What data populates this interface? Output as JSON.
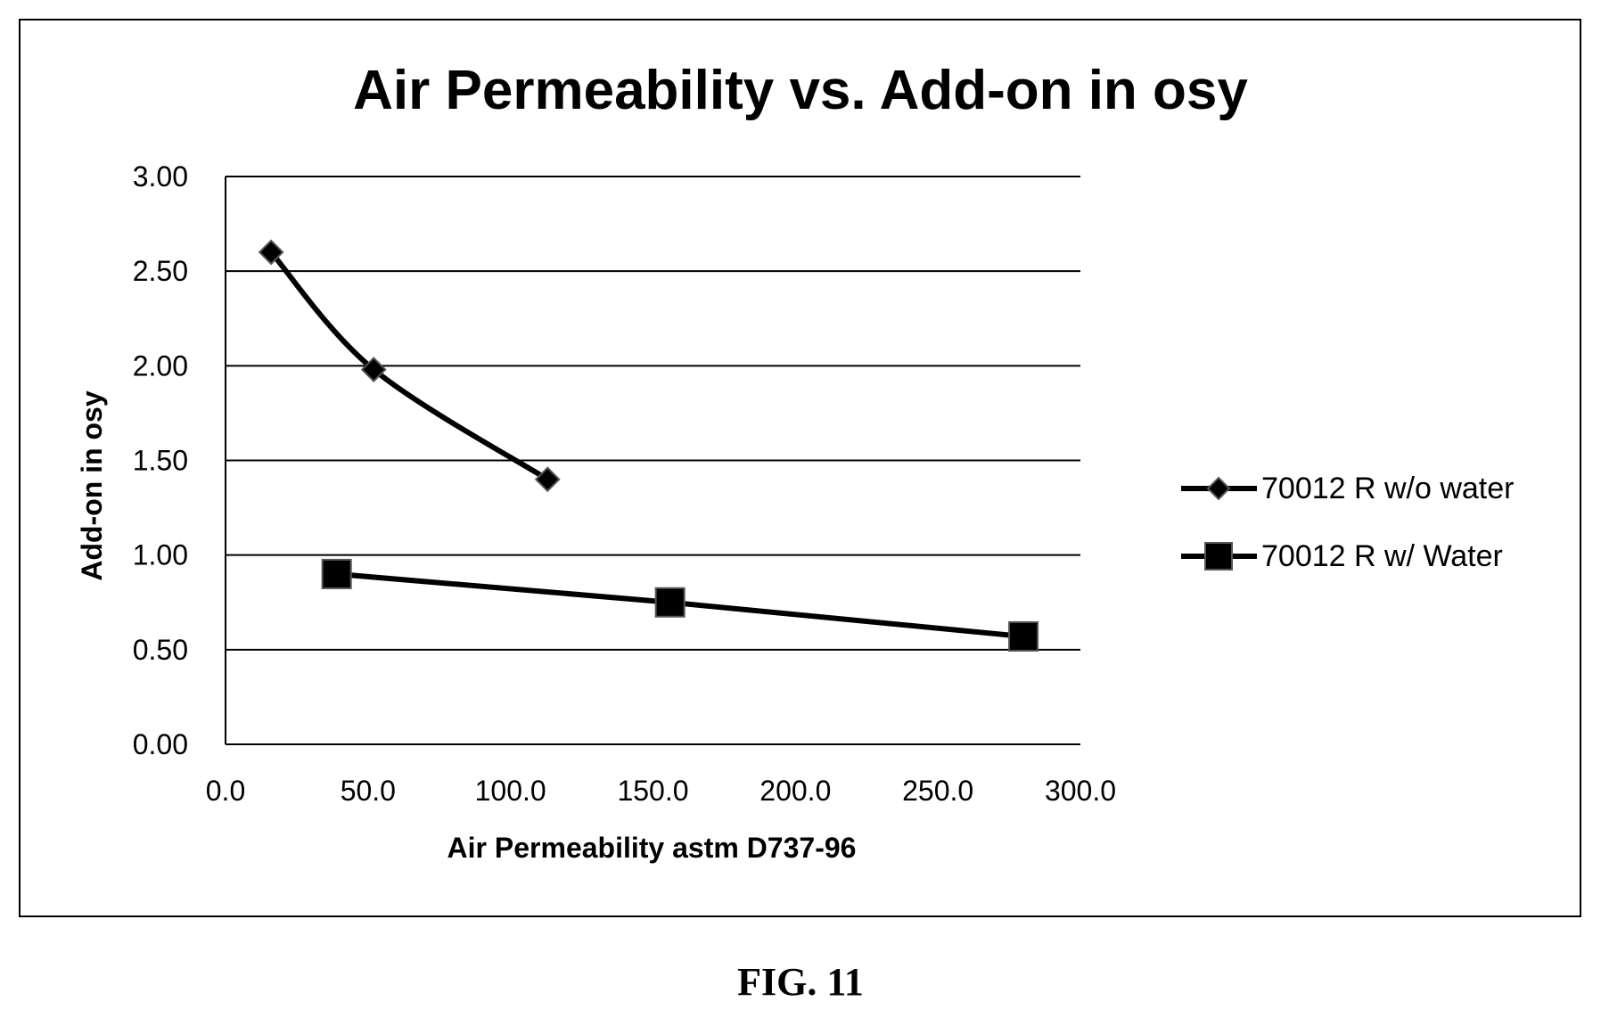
{
  "figure_label": "FIG. 11",
  "chart_data": {
    "type": "line",
    "title": "Air Permeability vs. Add-on in osy",
    "xlabel": "Air Permeability astm D737-96",
    "ylabel": "Add-on in osy",
    "xlim": [
      0,
      300
    ],
    "ylim": [
      0,
      3
    ],
    "x_ticks": [
      "0.0",
      "50.0",
      "100.0",
      "150.0",
      "200.0",
      "250.0",
      "300.0"
    ],
    "y_ticks": [
      "0.00",
      "0.50",
      "1.00",
      "1.50",
      "2.00",
      "2.50",
      "3.00"
    ],
    "grid": "horizontal",
    "legend_position": "right",
    "series": [
      {
        "name": "70012 R w/o water",
        "marker": "diamond",
        "color": "#000000",
        "points": [
          [
            16,
            2.6
          ],
          [
            52,
            1.98
          ],
          [
            113,
            1.4
          ]
        ]
      },
      {
        "name": "70012 R w/ Water",
        "marker": "square",
        "color": "#000000",
        "points": [
          [
            39,
            0.9
          ],
          [
            156,
            0.75
          ],
          [
            280,
            0.57
          ]
        ]
      }
    ]
  }
}
